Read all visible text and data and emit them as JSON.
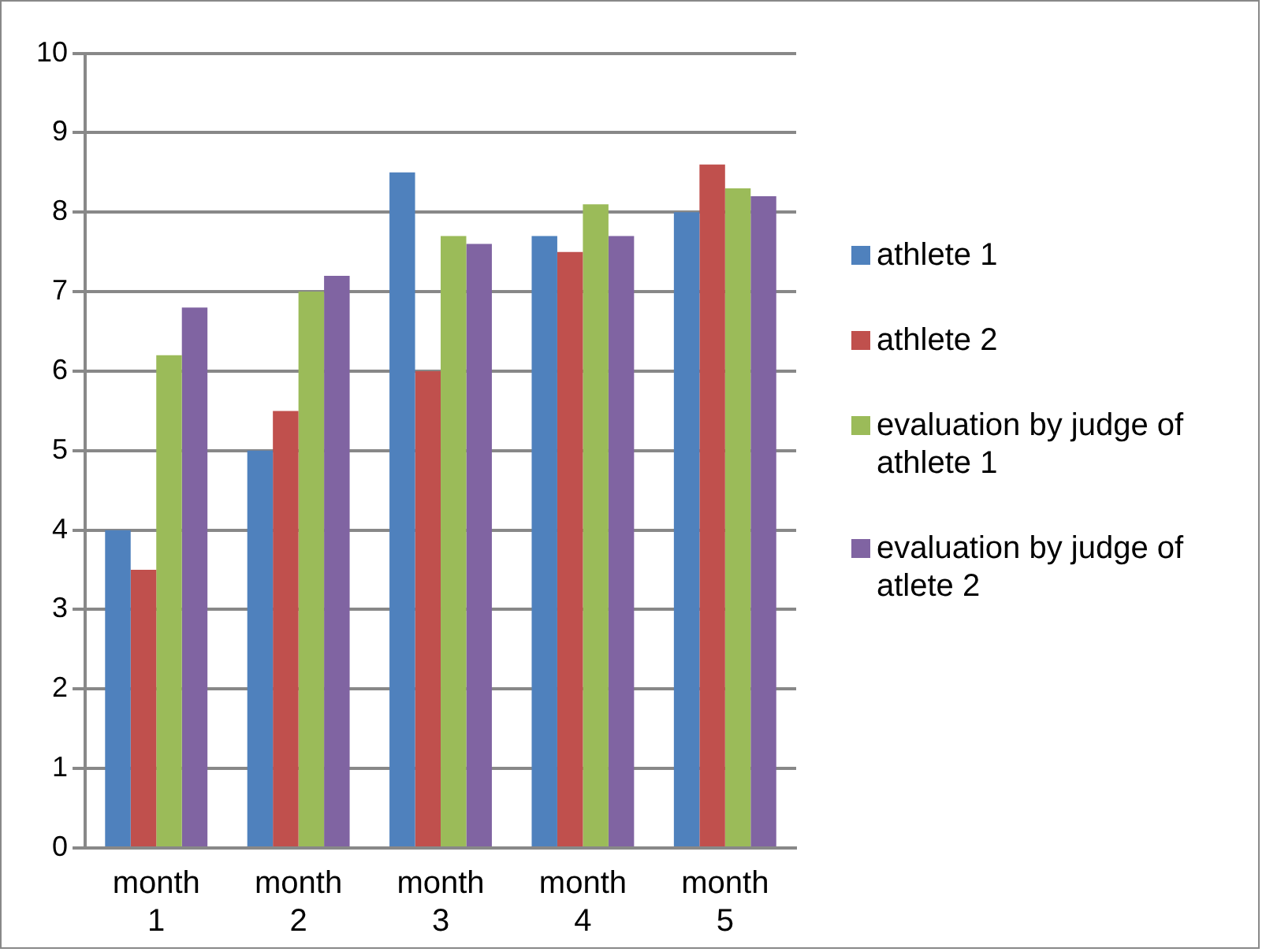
{
  "chart_data": {
    "type": "bar",
    "categories": [
      "month 1",
      "month 2",
      "month 3",
      "month 4",
      "month 5"
    ],
    "series": [
      {
        "name": "athlete 1",
        "color": "#4f81bd",
        "values": [
          4,
          5,
          8.5,
          7.7,
          8
        ]
      },
      {
        "name": "athlete 2",
        "color": "#c0504d",
        "values": [
          3.5,
          5.5,
          6,
          7.5,
          8.6
        ]
      },
      {
        "name": "evaluation by judge of athlete 1",
        "color": "#9bbb59",
        "values": [
          6.2,
          7,
          7.7,
          8.1,
          8.3
        ]
      },
      {
        "name": "evaluation by judge of atlete 2",
        "color": "#8064a2",
        "values": [
          6.8,
          7.2,
          7.6,
          7.7,
          8.2
        ]
      }
    ],
    "ylim": [
      0,
      10
    ],
    "yticks": [
      0,
      1,
      2,
      3,
      4,
      5,
      6,
      7,
      8,
      9,
      10
    ],
    "grid": "y",
    "legend": "right"
  }
}
